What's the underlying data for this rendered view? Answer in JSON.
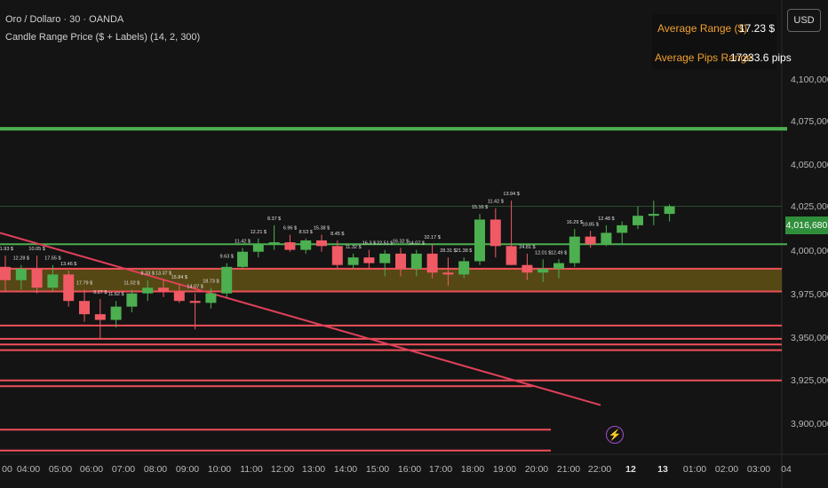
{
  "header": {
    "title": "Oro / Dollaro · 30 · OANDA",
    "indicator": "Candle Range Price ($ + Labels) (14, 2, 300)"
  },
  "currency_button": "USD",
  "stats": {
    "avg_range_label": "Average Range ($)",
    "avg_range_value": "17.23 $",
    "avg_pips_label": "Average Pips Range",
    "avg_pips_value": "17233.6 pips"
  },
  "last_price": "4,016,680",
  "alert_icon": "lightning-icon",
  "colors": {
    "up": "#4caf50",
    "down": "#f05a64",
    "zone": "#6b5a14",
    "support_line": "#4caf50",
    "resistance_line": "#f0505a",
    "label_text": "#e0e0e0",
    "stats_label": "#f0a030"
  },
  "chart_data": {
    "type": "candlestick",
    "y_axis_ticks": [
      "4,100,000",
      "4,075,000",
      "4,050,000",
      "4,025,000",
      "4,000,000",
      "3,975,000",
      "3,950,000",
      "3,925,000",
      "3,900,000"
    ],
    "x_axis_ticks": [
      "00",
      "04:00",
      "05:00",
      "06:00",
      "07:00",
      "08:00",
      "09:00",
      "10:00",
      "11:00",
      "12:00",
      "13:00",
      "14:00",
      "15:00",
      "16:00",
      "17:00",
      "18:00",
      "19:00",
      "20:00",
      "21:00",
      "22:00",
      "12",
      "13",
      "01:00",
      "02:00",
      "03:00",
      "04"
    ],
    "ylim": [
      3885000,
      4125000
    ],
    "candles": [
      {
        "o": 3984000,
        "h": 3990000,
        "l": 3971000,
        "c": 3977000
      },
      {
        "o": 3977000,
        "h": 3985000,
        "l": 3972000,
        "c": 3983000
      },
      {
        "o": 3983000,
        "h": 3990000,
        "l": 3970000,
        "c": 3973000
      },
      {
        "o": 3973000,
        "h": 3985000,
        "l": 3971000,
        "c": 3980000
      },
      {
        "o": 3980000,
        "h": 3982000,
        "l": 3963000,
        "c": 3966000
      },
      {
        "o": 3966000,
        "h": 3972000,
        "l": 3955000,
        "c": 3959000
      },
      {
        "o": 3959000,
        "h": 3967000,
        "l": 3946000,
        "c": 3956000
      },
      {
        "o": 3956000,
        "h": 3966000,
        "l": 3952000,
        "c": 3963000
      },
      {
        "o": 3963000,
        "h": 3972000,
        "l": 3960000,
        "c": 3970000
      },
      {
        "o": 3970000,
        "h": 3977000,
        "l": 3966000,
        "c": 3973000
      },
      {
        "o": 3973000,
        "h": 3977000,
        "l": 3968000,
        "c": 3971000
      },
      {
        "o": 3971000,
        "h": 3975000,
        "l": 3965000,
        "c": 3966000
      },
      {
        "o": 3966000,
        "h": 3970000,
        "l": 3951000,
        "c": 3965000
      },
      {
        "o": 3965000,
        "h": 3973000,
        "l": 3962000,
        "c": 3970000
      },
      {
        "o": 3970000,
        "h": 3986000,
        "l": 3968000,
        "c": 3984000
      },
      {
        "o": 3984000,
        "h": 3994000,
        "l": 3983000,
        "c": 3992000
      },
      {
        "o": 3992000,
        "h": 3999000,
        "l": 3989000,
        "c": 3996000
      },
      {
        "o": 3996000,
        "h": 4006000,
        "l": 3993000,
        "c": 3997000
      },
      {
        "o": 3997000,
        "h": 4001000,
        "l": 3992000,
        "c": 3993000
      },
      {
        "o": 3993000,
        "h": 3999000,
        "l": 3991000,
        "c": 3998000
      },
      {
        "o": 3998000,
        "h": 4001000,
        "l": 3992000,
        "c": 3995000
      },
      {
        "o": 3995000,
        "h": 3998000,
        "l": 3983000,
        "c": 3985000
      },
      {
        "o": 3985000,
        "h": 3991000,
        "l": 3983000,
        "c": 3989000
      },
      {
        "o": 3989000,
        "h": 3993000,
        "l": 3983000,
        "c": 3986000
      },
      {
        "o": 3986000,
        "h": 3993000,
        "l": 3979000,
        "c": 3991000
      },
      {
        "o": 3991000,
        "h": 3994000,
        "l": 3979000,
        "c": 3983000
      },
      {
        "o": 3983000,
        "h": 3993000,
        "l": 3979000,
        "c": 3991000
      },
      {
        "o": 3991000,
        "h": 3996000,
        "l": 3978000,
        "c": 3981000
      },
      {
        "o": 3981000,
        "h": 3989000,
        "l": 3974000,
        "c": 3980000
      },
      {
        "o": 3980000,
        "h": 3989000,
        "l": 3978000,
        "c": 3987000
      },
      {
        "o": 3987000,
        "h": 4012000,
        "l": 3985000,
        "c": 4009000
      },
      {
        "o": 4009000,
        "h": 4015000,
        "l": 3989000,
        "c": 3995000
      },
      {
        "o": 3995000,
        "h": 4019000,
        "l": 3985000,
        "c": 3985000
      },
      {
        "o": 3985000,
        "h": 3991000,
        "l": 3977000,
        "c": 3981000
      },
      {
        "o": 3981000,
        "h": 3988000,
        "l": 3976000,
        "c": 3983000
      },
      {
        "o": 3983000,
        "h": 3988000,
        "l": 3978000,
        "c": 3986000
      },
      {
        "o": 3986000,
        "h": 4004000,
        "l": 3984000,
        "c": 4000000
      },
      {
        "o": 4000000,
        "h": 4003000,
        "l": 3994000,
        "c": 3996000
      },
      {
        "o": 3996000,
        "h": 4006000,
        "l": 3995000,
        "c": 4002000
      },
      {
        "o": 4002000,
        "h": 4008000,
        "l": 3996000,
        "c": 4006000
      },
      {
        "o": 4006000,
        "h": 4016000,
        "l": 4004000,
        "c": 4011000
      },
      {
        "o": 4011000,
        "h": 4019000,
        "l": 4006000,
        "c": 4012000
      },
      {
        "o": 4012000,
        "h": 4017000,
        "l": 4008000,
        "c": 4016000
      }
    ],
    "range_labels": [
      {
        "i": 0,
        "t": "11.93 $"
      },
      {
        "i": 1,
        "t": "12.28 $"
      },
      {
        "i": 2,
        "t": "10.05 $"
      },
      {
        "i": 3,
        "t": "17.55 $"
      },
      {
        "i": 4,
        "t": "13.46 $"
      },
      {
        "i": 5,
        "t": "17.79 $"
      },
      {
        "i": 6,
        "t": "9.27 $"
      },
      {
        "i": 7,
        "t": "11.62 $"
      },
      {
        "i": 8,
        "t": "11.02 $"
      },
      {
        "i": 9,
        "t": "8.33 $"
      },
      {
        "i": 10,
        "t": "13.37 $"
      },
      {
        "i": 11,
        "t": "15.84 $"
      },
      {
        "i": 12,
        "t": "14.07 $"
      },
      {
        "i": 13,
        "t": "18.73 $"
      },
      {
        "i": 14,
        "t": "9.63 $"
      },
      {
        "i": 15,
        "t": "11.42 $"
      },
      {
        "i": 16,
        "t": "12.21 $"
      },
      {
        "i": 17,
        "t": "8.37 $"
      },
      {
        "i": 18,
        "t": "6.96 $"
      },
      {
        "i": 19,
        "t": "8.53 $"
      },
      {
        "i": 20,
        "t": "15.38 $"
      },
      {
        "i": 21,
        "t": "8.45 $"
      },
      {
        "i": 22,
        "t": "11.32 $"
      },
      {
        "i": 23,
        "t": "16.3 $"
      },
      {
        "i": 24,
        "t": "22.51 $"
      },
      {
        "i": 25,
        "t": "16.32 $"
      },
      {
        "i": 26,
        "t": "14.07 $"
      },
      {
        "i": 27,
        "t": "32.17 $"
      },
      {
        "i": 28,
        "t": "28.31 $"
      },
      {
        "i": 29,
        "t": "21.38 $"
      },
      {
        "i": 30,
        "t": "15.16 $"
      },
      {
        "i": 31,
        "t": "11.42 $"
      },
      {
        "i": 32,
        "t": "13.94 $"
      },
      {
        "i": 33,
        "t": "24.81 $"
      },
      {
        "i": 34,
        "t": "12.01 $"
      },
      {
        "i": 35,
        "t": "12.49 $"
      },
      {
        "i": 36,
        "t": "16.29 $"
      },
      {
        "i": 37,
        "t": "10.85 $"
      },
      {
        "i": 38,
        "t": "12.48 $"
      }
    ],
    "support_lines": [
      4057000,
      3996000
    ],
    "resistance_lines": [
      3983000,
      3971000,
      3953000,
      3946000,
      3943000,
      3940000,
      3924000,
      3921000,
      3898000,
      3887000
    ],
    "zone": [
      3971000,
      3983000
    ],
    "trendline": [
      [
        3978000,
        4002000
      ],
      [
        4064000,
        3911000
      ]
    ]
  }
}
